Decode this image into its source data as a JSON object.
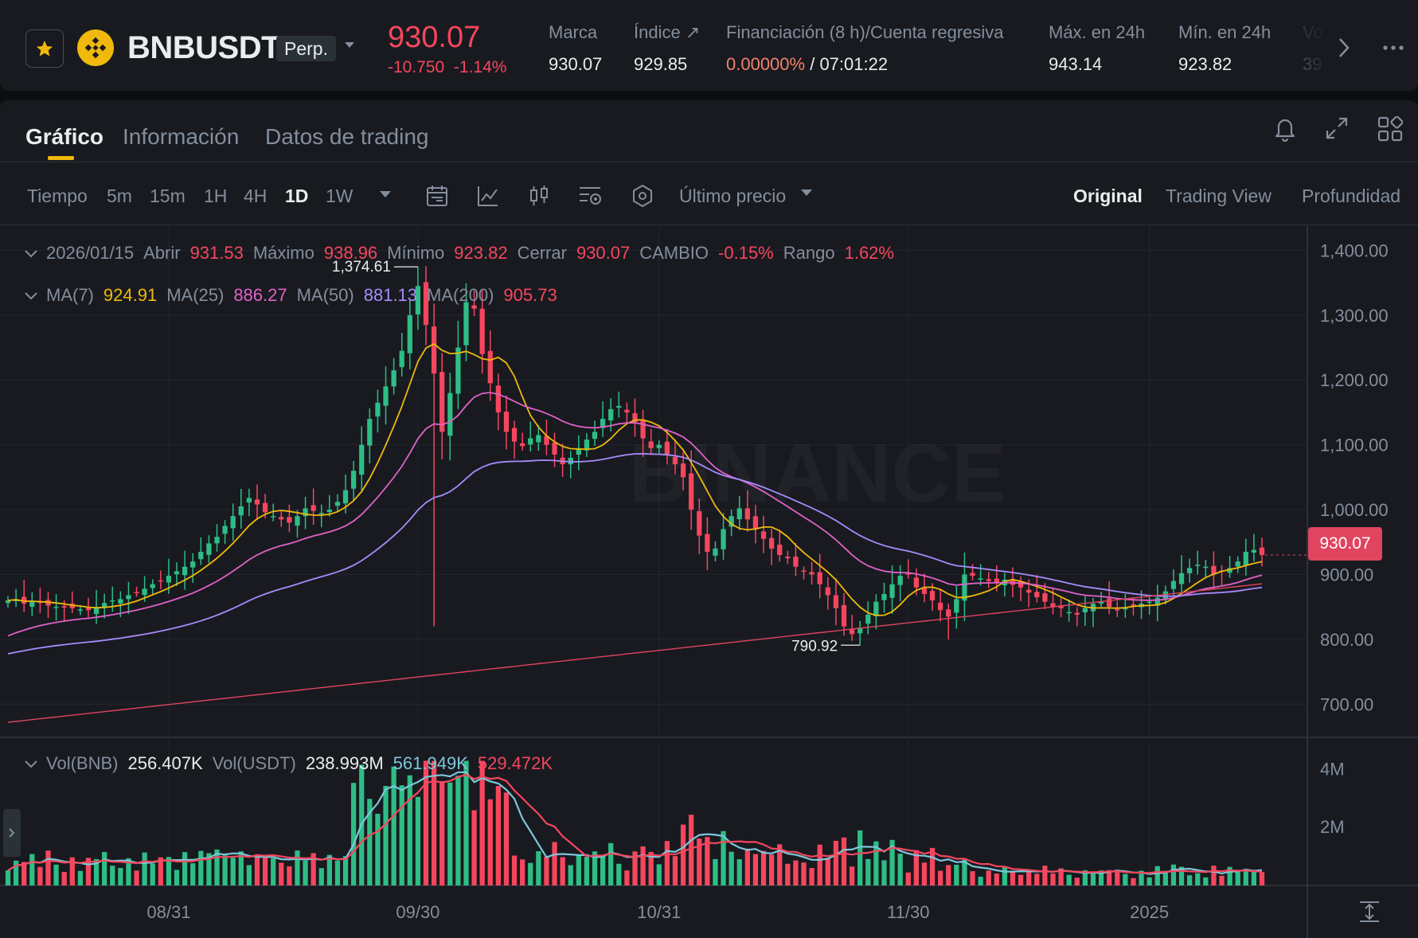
{
  "header": {
    "symbol": "BNBUSDT",
    "contract_type": "Perp.",
    "last_price": "930.07",
    "price_change": "-10.750",
    "price_change_pct": "-1.14%",
    "stats": [
      {
        "label": "Marca",
        "value": "930.07"
      },
      {
        "label": "Índice ↗",
        "value": "929.85"
      },
      {
        "label": "Financiación (8 h)/Cuenta regresiva",
        "value_rate": "0.00000%",
        "value_countdown": "/ 07:01:22"
      },
      {
        "label": "Máx. en 24h",
        "value": "943.14"
      },
      {
        "label": "Mín. en 24h",
        "value": "923.82"
      },
      {
        "label": "Vo",
        "value": "39"
      }
    ]
  },
  "tabs": [
    {
      "label": "Gráfico",
      "active": true
    },
    {
      "label": "Información",
      "active": false
    },
    {
      "label": "Datos de trading",
      "active": false
    }
  ],
  "toolbar": {
    "time_label": "Tiempo",
    "intervals": [
      "5m",
      "15m",
      "1H",
      "4H",
      "1D",
      "1W"
    ],
    "active_interval": "1D",
    "price_type": "Último precio",
    "views": [
      "Original",
      "Trading View",
      "Profundidad"
    ],
    "active_view": "Original"
  },
  "ohlc_legend": {
    "date": "2026/01/15",
    "open_label": "Abrir",
    "open": "931.53",
    "high_label": "Máximo",
    "high": "938.96",
    "low_label": "Mínimo",
    "low": "923.82",
    "close_label": "Cerrar",
    "close": "930.07",
    "change_label": "CAMBIO",
    "change": "-0.15%",
    "range_label": "Rango",
    "range": "1.62%"
  },
  "ma_legend": {
    "ma7_label": "MA(7)",
    "ma7": "924.91",
    "ma25_label": "MA(25)",
    "ma25": "886.27",
    "ma50_label": "MA(50)",
    "ma50": "881.13",
    "ma200_label": "MA(200)",
    "ma200": "905.73"
  },
  "vol_legend": {
    "vol_bnb_label": "Vol(BNB)",
    "vol_bnb": "256.407K",
    "vol_usdt_label": "Vol(USDT)",
    "vol_usdt": "238.993M",
    "vol_ma1": "561.949K",
    "vol_ma2": "529.472K"
  },
  "colors": {
    "up": "#2ebd85",
    "down": "#f6465d",
    "ma7": "#f0b90b",
    "ma25": "#e062c7",
    "ma50": "#a78bfa",
    "ma200": "#e0445f",
    "vol_ma1": "#7cc7d9",
    "vol_ma2": "#f6465d",
    "accent": "#f0b90b"
  },
  "price_axis": [
    "1,400.00",
    "1,300.00",
    "1,200.00",
    "1,100.00",
    "1,000.00",
    "900.00",
    "800.00",
    "700.00"
  ],
  "current_price_tag": "930.07",
  "volume_axis": [
    "4M",
    "2M"
  ],
  "time_axis": [
    "08/31",
    "09/30",
    "10/31",
    "11/30",
    "2025"
  ],
  "annotations": {
    "high": "1,374.61",
    "low": "790.92"
  },
  "watermark": "BINANCE",
  "chart_data": {
    "type": "candlestick",
    "interval": "1D",
    "ylim": [
      650,
      1430
    ],
    "volume_ylim": [
      0,
      5000000
    ],
    "x_ticks": [
      "08/31",
      "09/30",
      "10/31",
      "11/30",
      "2025"
    ],
    "annotated_high": 1374.61,
    "annotated_low": 790.92,
    "last_close": 930.07,
    "closes": [
      860,
      862,
      855,
      858,
      856,
      852,
      850,
      849,
      848,
      846,
      845,
      850,
      856,
      860,
      862,
      868,
      872,
      878,
      885,
      890,
      898,
      905,
      912,
      920,
      935,
      948,
      958,
      975,
      990,
      1005,
      1018,
      1008,
      996,
      990,
      985,
      980,
      990,
      1002,
      998,
      995,
      1000,
      1012,
      1030,
      1060,
      1100,
      1140,
      1165,
      1190,
      1215,
      1245,
      1300,
      1345,
      1285,
      1210,
      1120,
      1180,
      1250,
      1320,
      1310,
      1240,
      1195,
      1150,
      1120,
      1105,
      1098,
      1110,
      1115,
      1100,
      1085,
      1070,
      1080,
      1095,
      1108,
      1120,
      1140,
      1155,
      1160,
      1150,
      1135,
      1110,
      1095,
      1100,
      1085,
      1070,
      1050,
      1000,
      960,
      935,
      940,
      970,
      990,
      1002,
      985,
      970,
      955,
      940,
      930,
      925,
      912,
      905,
      900,
      885,
      868,
      848,
      820,
      808,
      818,
      838,
      858,
      870,
      885,
      898,
      900,
      880,
      870,
      860,
      845,
      835,
      862,
      900,
      898,
      894,
      890,
      888,
      892,
      884,
      880,
      872,
      865,
      858,
      850,
      848,
      842,
      838,
      848,
      855,
      858,
      850,
      845,
      848,
      852,
      855,
      858,
      864,
      874,
      890,
      902,
      910,
      915,
      912,
      900,
      905,
      910,
      920,
      935,
      938,
      930
    ],
    "ma_series": [
      "MA(7)",
      "MA(25)",
      "MA(50)",
      "MA(200)"
    ]
  }
}
